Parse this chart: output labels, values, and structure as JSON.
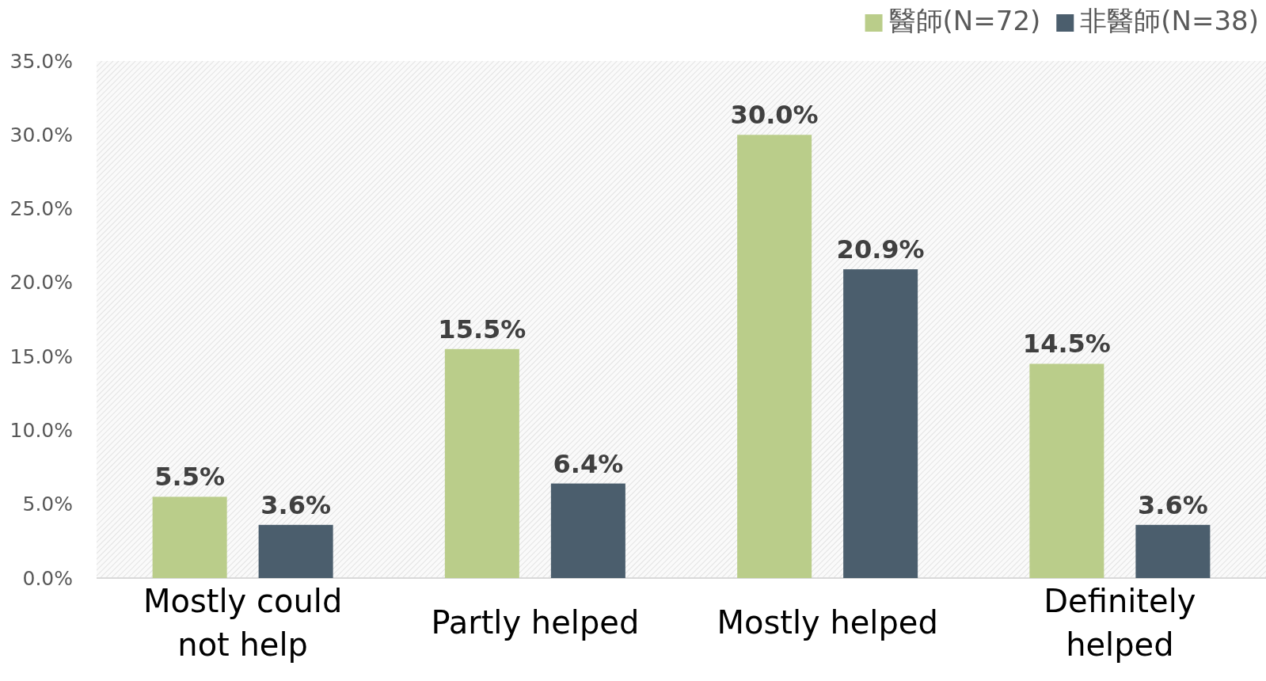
{
  "chart_data": {
    "type": "bar",
    "categories": [
      "Mostly could not help",
      "Partly helped",
      "Mostly helped",
      "Definitely helped"
    ],
    "series": [
      {
        "name": "醫師(N=72)",
        "color": "#bacd8a",
        "values": [
          5.5,
          15.5,
          30.0,
          14.5
        ],
        "value_labels": [
          "5.5%",
          "15.5%",
          "30.0%",
          "14.5%"
        ]
      },
      {
        "name": "非醫師(N=38)",
        "color": "#4b5e6d",
        "values": [
          3.6,
          6.4,
          20.9,
          3.6
        ],
        "value_labels": [
          "3.6%",
          "6.4%",
          "20.9%",
          "3.6%"
        ]
      }
    ],
    "ylim": [
      0,
      35
    ],
    "yticks": [
      {
        "value": 0,
        "label": "0.0%"
      },
      {
        "value": 5,
        "label": "5.0%"
      },
      {
        "value": 10,
        "label": "10.0%"
      },
      {
        "value": 15,
        "label": "15.0%"
      },
      {
        "value": 20,
        "label": "20.0%"
      },
      {
        "value": 25,
        "label": "25.0%"
      },
      {
        "value": 30,
        "label": "30.0%"
      },
      {
        "value": 35,
        "label": "35.0%"
      }
    ],
    "grid": false,
    "legend": "top right"
  }
}
